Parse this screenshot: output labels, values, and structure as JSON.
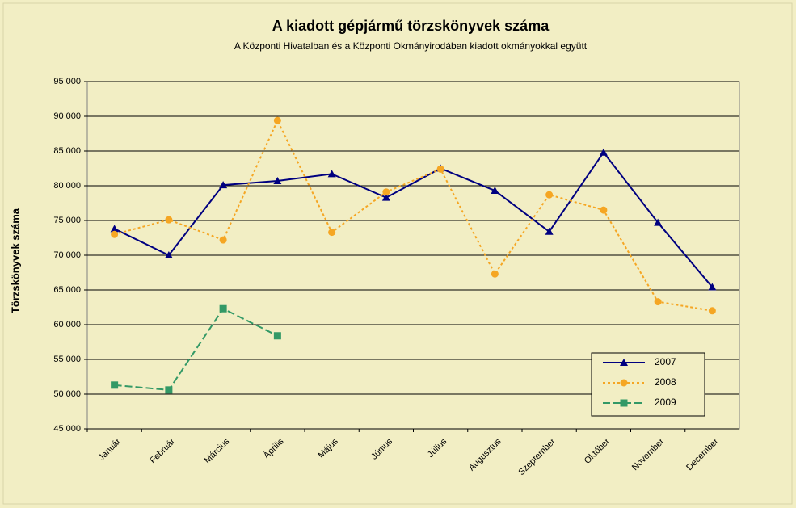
{
  "chart_data": {
    "type": "line",
    "title": "A  kiadott gépjármű  törzskönyvek száma",
    "subtitle": "A Központi Hivatalban és a Központi Okmányirodában kiadott okmányokkal együtt",
    "y_label": "Törzskönyvek száma",
    "categories": [
      "Január",
      "Február",
      "Március",
      "Április",
      "Május",
      "Június",
      "Július",
      "Augusztus",
      "Szeptember",
      "Október",
      "November",
      "December"
    ],
    "series": [
      {
        "name": "2007",
        "color": "#000080",
        "marker": "triangle",
        "dash": "solid",
        "values": [
          73800,
          70000,
          80100,
          80700,
          81700,
          78300,
          82500,
          79300,
          73400,
          84800,
          74700,
          65400
        ]
      },
      {
        "name": "2008",
        "color": "#f5a623",
        "marker": "circle",
        "dash": "dotted",
        "values": [
          73000,
          75100,
          72200,
          89400,
          73300,
          79100,
          82400,
          67300,
          78700,
          76500,
          63300,
          62000
        ]
      },
      {
        "name": "2009",
        "color": "#339966",
        "marker": "square",
        "dash": "dashed",
        "values": [
          51300,
          50600,
          62300,
          58400,
          null,
          null,
          null,
          null,
          null,
          null,
          null,
          null
        ]
      }
    ],
    "ylim": [
      45000,
      95000
    ],
    "yticks": [
      {
        "value": 45000,
        "label": "45 000"
      },
      {
        "value": 50000,
        "label": "50 000"
      },
      {
        "value": 55000,
        "label": "55 000"
      },
      {
        "value": 60000,
        "label": "60 000"
      },
      {
        "value": 65000,
        "label": "65 000"
      },
      {
        "value": 70000,
        "label": "70 000"
      },
      {
        "value": 75000,
        "label": "75 000"
      },
      {
        "value": 80000,
        "label": "80 000"
      },
      {
        "value": 85000,
        "label": "85 000"
      },
      {
        "value": 90000,
        "label": "90 000"
      },
      {
        "value": 95000,
        "label": "95 000"
      }
    ],
    "grid": true,
    "legend": "lower right"
  }
}
